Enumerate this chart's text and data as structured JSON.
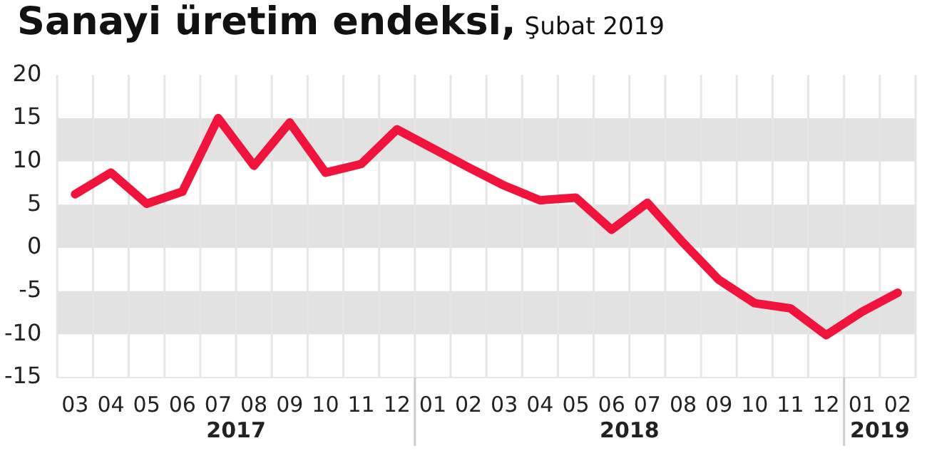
{
  "chart_data": {
    "type": "line",
    "title": "Sanayi üretim endeksi,",
    "subtitle": "Şubat 2019",
    "categories": [
      "03",
      "04",
      "05",
      "06",
      "07",
      "08",
      "09",
      "10",
      "11",
      "12",
      "01",
      "02",
      "03",
      "04",
      "05",
      "06",
      "07",
      "08",
      "09",
      "10",
      "11",
      "12",
      "01",
      "02"
    ],
    "annotations": [
      "2017",
      "2018",
      "2019"
    ],
    "series": [
      {
        "color": "#f0143c",
        "values": [
          6.2,
          8.7,
          5.1,
          6.5,
          15.0,
          9.5,
          14.5,
          8.7,
          9.7,
          13.7,
          11.5,
          9.3,
          7.2,
          5.5,
          5.8,
          2.1,
          5.2,
          0.6,
          -3.7,
          -6.4,
          -7.0,
          -10.1,
          -7.4,
          -5.2
        ]
      }
    ],
    "ylim": [
      -15,
      20
    ],
    "yticks": [
      -15,
      -10,
      -5,
      0,
      5,
      10,
      15,
      20
    ],
    "bands": [
      {
        "axis": "y",
        "from": 10,
        "to": 15,
        "color": "#e2e2e2"
      },
      {
        "axis": "y",
        "from": 0,
        "to": 5,
        "color": "#e2e2e2"
      },
      {
        "axis": "y",
        "from": -10,
        "to": -5,
        "color": "#e2e2e2"
      }
    ],
    "grid": "x",
    "legend": false,
    "marker": "none",
    "line_style": "solid"
  }
}
